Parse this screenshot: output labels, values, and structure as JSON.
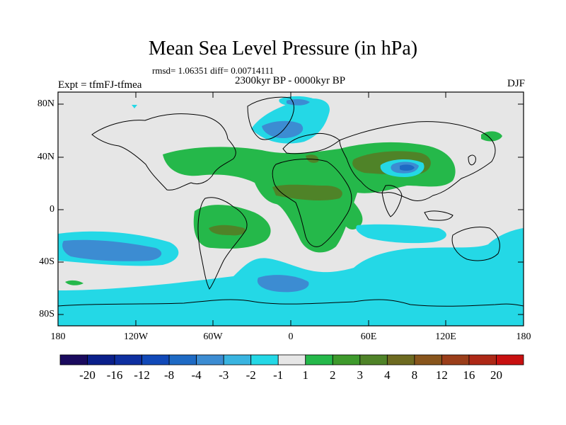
{
  "title": "Mean Sea Level Pressure (in hPa)",
  "stats_text": "rmsd= 1.06351 diff= 0.00714111",
  "period": "2300kyr BP - 0000kyr BP",
  "experiment": "Expt = tfmFJ-tfmea",
  "season": "DJF",
  "lat_labels": [
    "80N",
    "40N",
    "0",
    "40S",
    "80S"
  ],
  "lon_labels": [
    "180",
    "120W",
    "60W",
    "0",
    "60E",
    "120E",
    "180"
  ],
  "colorbar": {
    "colors": [
      "#1a0a5e",
      "#0a1f8a",
      "#0e2fa0",
      "#1149b8",
      "#1e6ac4",
      "#3c8cd2",
      "#39b4e0",
      "#24d8e6",
      "#e6e6e6",
      "#25b84a",
      "#3e9a2c",
      "#4f8328",
      "#6d6a20",
      "#88551c",
      "#9b3e1a",
      "#ad2816",
      "#c81010"
    ],
    "labels": [
      "-20",
      "-16",
      "-12",
      "-8",
      "-4",
      "-3",
      "-2",
      "-1",
      "1",
      "2",
      "3",
      "4",
      "8",
      "12",
      "16",
      "20"
    ]
  },
  "map_colors": {
    "background": "#e6e6e6",
    "green": "#25b84a",
    "olive": "#4f8328",
    "cyan": "#24d8e6",
    "blue": "#3c8cd2",
    "darkblue": "#1e6ac4"
  }
}
